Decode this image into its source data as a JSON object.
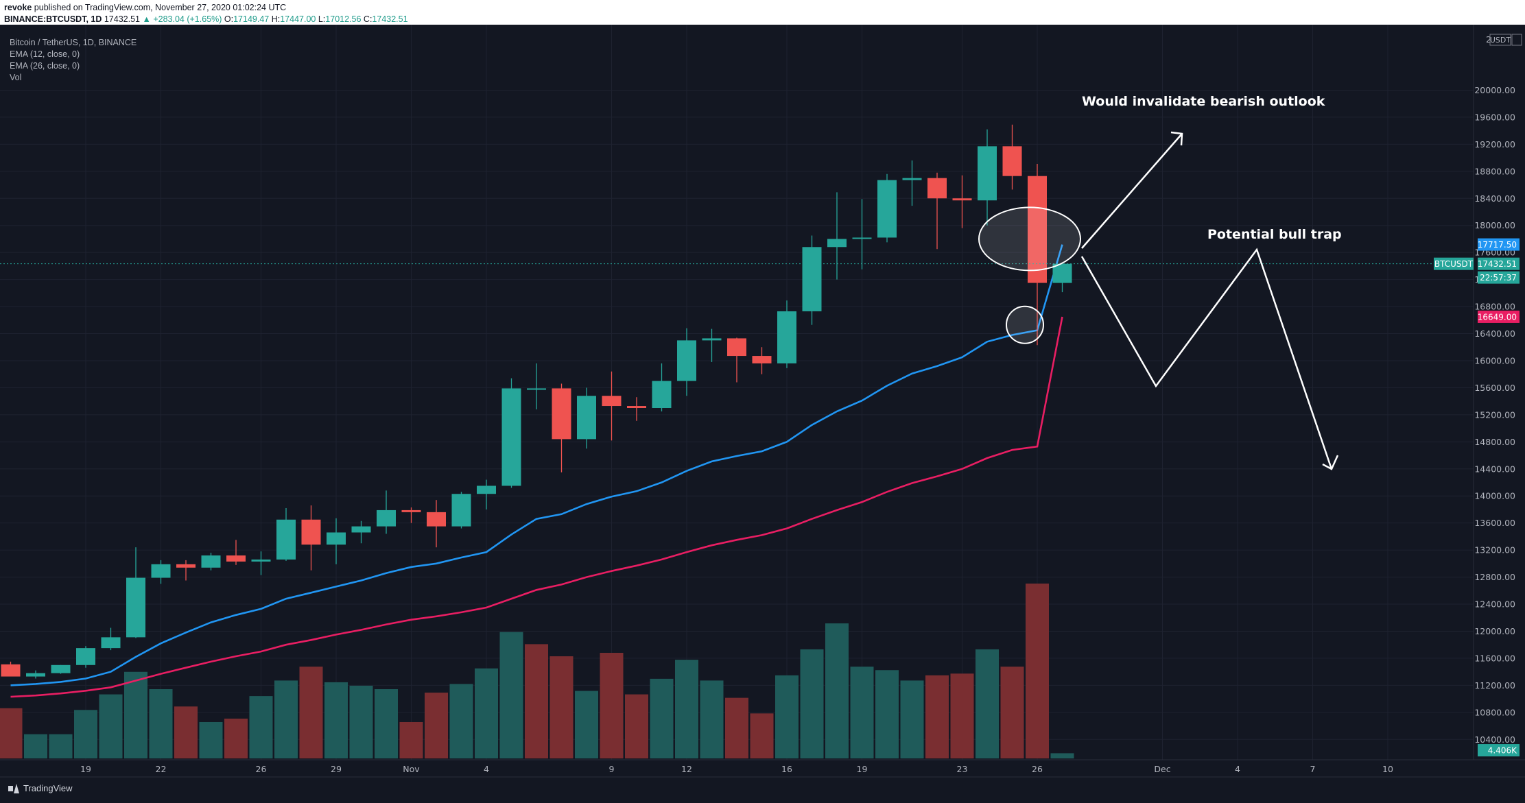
{
  "header": {
    "user": "revoke",
    "published": " published on TradingView.com, November 27, 2020 01:02:24 UTC",
    "symbol": "BINANCE:BTCUSDT, 1D",
    "last": "17432.51",
    "change": "+283.04 (+1.65%)",
    "o_label": "O:",
    "o": "17149.47",
    "h_label": "H:",
    "h": "17447.00",
    "l_label": "L:",
    "l": "17012.56",
    "c_label": "C:",
    "c": "17432.51"
  },
  "legend": {
    "title": "Bitcoin / TetherUS, 1D, BINANCE",
    "ema12": "EMA (12, close, 0)",
    "ema26": "EMA (26, close, 0)",
    "vol": "Vol"
  },
  "footer": {
    "brand": "TradingView"
  },
  "colors": {
    "up": "#26a69a",
    "down": "#ef5350",
    "vol_up": "#1f5b5a",
    "vol_down": "#7a2e31",
    "ema12": "#2196f3",
    "ema26": "#e91e63",
    "grid": "#1e2230",
    "axis_text": "#b2b5be"
  },
  "chart_data": {
    "type": "candlestick",
    "title": "Bitcoin / TetherUS, 1D, BINANCE",
    "ylim": [
      10200,
      20400
    ],
    "currency_label": "USDT",
    "y_ticks": [
      "10400.00",
      "10800.00",
      "11200.00",
      "11600.00",
      "12000.00",
      "12400.00",
      "12800.00",
      "13200.00",
      "13600.00",
      "14000.00",
      "14400.00",
      "14800.00",
      "15200.00",
      "15600.00",
      "16000.00",
      "16400.00",
      "16800.00",
      "17200.00",
      "17600.00",
      "18000.00",
      "18400.00",
      "18800.00",
      "19200.00",
      "19600.00",
      "20000.00"
    ],
    "top_tick": "2",
    "x_ticks": [
      {
        "i": 3,
        "label": "19"
      },
      {
        "i": 6,
        "label": "22"
      },
      {
        "i": 10,
        "label": "26"
      },
      {
        "i": 13,
        "label": "29"
      },
      {
        "i": 16,
        "label": "Nov"
      },
      {
        "i": 19,
        "label": "4"
      },
      {
        "i": 24,
        "label": "9"
      },
      {
        "i": 27,
        "label": "12"
      },
      {
        "i": 31,
        "label": "16"
      },
      {
        "i": 34,
        "label": "19"
      },
      {
        "i": 38,
        "label": "23"
      },
      {
        "i": 41,
        "label": "26"
      },
      {
        "i": 46,
        "label": "Dec"
      },
      {
        "i": 49,
        "label": "4"
      },
      {
        "i": 52,
        "label": "7"
      },
      {
        "i": 55,
        "label": "10"
      }
    ],
    "candles": [
      {
        "o": 11510,
        "h": 11550,
        "l": 11340,
        "c": 11330
      },
      {
        "o": 11330,
        "h": 11420,
        "l": 11300,
        "c": 11380
      },
      {
        "o": 11380,
        "h": 11500,
        "l": 11370,
        "c": 11500
      },
      {
        "o": 11500,
        "h": 11780,
        "l": 11460,
        "c": 11750
      },
      {
        "o": 11750,
        "h": 12050,
        "l": 11720,
        "c": 11910
      },
      {
        "o": 11910,
        "h": 13240,
        "l": 11900,
        "c": 12790
      },
      {
        "o": 12790,
        "h": 13050,
        "l": 12700,
        "c": 12990
      },
      {
        "o": 12990,
        "h": 13050,
        "l": 12750,
        "c": 12940
      },
      {
        "o": 12940,
        "h": 13160,
        "l": 12900,
        "c": 13120
      },
      {
        "o": 13120,
        "h": 13350,
        "l": 12980,
        "c": 13030
      },
      {
        "o": 13030,
        "h": 13180,
        "l": 12830,
        "c": 13060
      },
      {
        "o": 13060,
        "h": 13820,
        "l": 13040,
        "c": 13650
      },
      {
        "o": 13650,
        "h": 13860,
        "l": 12900,
        "c": 13280
      },
      {
        "o": 13280,
        "h": 13670,
        "l": 12990,
        "c": 13460
      },
      {
        "o": 13460,
        "h": 13630,
        "l": 13300,
        "c": 13550
      },
      {
        "o": 13550,
        "h": 14080,
        "l": 13440,
        "c": 13790
      },
      {
        "o": 13790,
        "h": 13830,
        "l": 13600,
        "c": 13760
      },
      {
        "o": 13760,
        "h": 13940,
        "l": 13240,
        "c": 13550
      },
      {
        "o": 13550,
        "h": 14060,
        "l": 13520,
        "c": 14030
      },
      {
        "o": 14030,
        "h": 14240,
        "l": 13800,
        "c": 14150
      },
      {
        "o": 14150,
        "h": 15740,
        "l": 14120,
        "c": 15590
      },
      {
        "o": 15590,
        "h": 15960,
        "l": 15280,
        "c": 15590
      },
      {
        "o": 15590,
        "h": 15660,
        "l": 14350,
        "c": 14840
      },
      {
        "o": 14840,
        "h": 15600,
        "l": 14700,
        "c": 15480
      },
      {
        "o": 15480,
        "h": 15840,
        "l": 14820,
        "c": 15330
      },
      {
        "o": 15330,
        "h": 15460,
        "l": 15110,
        "c": 15300
      },
      {
        "o": 15300,
        "h": 15960,
        "l": 15250,
        "c": 15700
      },
      {
        "o": 15700,
        "h": 16480,
        "l": 15480,
        "c": 16300
      },
      {
        "o": 16300,
        "h": 16470,
        "l": 15980,
        "c": 16330
      },
      {
        "o": 16330,
        "h": 16340,
        "l": 15680,
        "c": 16070
      },
      {
        "o": 16070,
        "h": 16200,
        "l": 15800,
        "c": 15960
      },
      {
        "o": 15960,
        "h": 16890,
        "l": 15890,
        "c": 16730
      },
      {
        "o": 16730,
        "h": 17850,
        "l": 16530,
        "c": 17680
      },
      {
        "o": 17680,
        "h": 18490,
        "l": 17200,
        "c": 17800
      },
      {
        "o": 17800,
        "h": 18390,
        "l": 17350,
        "c": 17820
      },
      {
        "o": 17820,
        "h": 18760,
        "l": 17750,
        "c": 18670
      },
      {
        "o": 18670,
        "h": 18960,
        "l": 18290,
        "c": 18700
      },
      {
        "o": 18700,
        "h": 18780,
        "l": 17650,
        "c": 18400
      },
      {
        "o": 18400,
        "h": 18740,
        "l": 17960,
        "c": 18370
      },
      {
        "o": 18370,
        "h": 19420,
        "l": 18000,
        "c": 19170
      },
      {
        "o": 19170,
        "h": 19490,
        "l": 18530,
        "c": 18730
      },
      {
        "o": 18730,
        "h": 18910,
        "l": 16230,
        "c": 17150
      },
      {
        "o": 17149.47,
        "h": 17447,
        "l": 17012.56,
        "c": 17432.51
      }
    ],
    "volume": [
      {
        "v": 290,
        "up": false
      },
      {
        "v": 140,
        "up": true
      },
      {
        "v": 140,
        "up": true
      },
      {
        "v": 280,
        "up": true
      },
      {
        "v": 370,
        "up": true
      },
      {
        "v": 500,
        "up": true
      },
      {
        "v": 400,
        "up": true
      },
      {
        "v": 300,
        "up": false
      },
      {
        "v": 210,
        "up": true
      },
      {
        "v": 230,
        "up": false
      },
      {
        "v": 360,
        "up": true
      },
      {
        "v": 450,
        "up": true
      },
      {
        "v": 530,
        "up": false
      },
      {
        "v": 440,
        "up": true
      },
      {
        "v": 420,
        "up": true
      },
      {
        "v": 400,
        "up": true
      },
      {
        "v": 210,
        "up": false
      },
      {
        "v": 380,
        "up": false
      },
      {
        "v": 430,
        "up": true
      },
      {
        "v": 520,
        "up": true
      },
      {
        "v": 730,
        "up": true
      },
      {
        "v": 660,
        "up": false
      },
      {
        "v": 590,
        "up": false
      },
      {
        "v": 390,
        "up": true
      },
      {
        "v": 610,
        "up": false
      },
      {
        "v": 370,
        "up": false
      },
      {
        "v": 460,
        "up": true
      },
      {
        "v": 570,
        "up": true
      },
      {
        "v": 450,
        "up": true
      },
      {
        "v": 350,
        "up": false
      },
      {
        "v": 260,
        "up": false
      },
      {
        "v": 480,
        "up": true
      },
      {
        "v": 630,
        "up": true
      },
      {
        "v": 780,
        "up": true
      },
      {
        "v": 530,
        "up": true
      },
      {
        "v": 510,
        "up": true
      },
      {
        "v": 450,
        "up": true
      },
      {
        "v": 480,
        "up": false
      },
      {
        "v": 490,
        "up": false
      },
      {
        "v": 630,
        "up": true
      },
      {
        "v": 530,
        "up": false
      },
      {
        "v": 1010,
        "up": false
      },
      {
        "v": 30,
        "up": true
      }
    ],
    "ema12": [
      11200,
      11220,
      11250,
      11300,
      11400,
      11620,
      11820,
      11980,
      12130,
      12240,
      12330,
      12480,
      12570,
      12660,
      12750,
      12860,
      12950,
      13000,
      13090,
      13170,
      13430,
      13660,
      13730,
      13880,
      13990,
      14070,
      14200,
      14370,
      14510,
      14590,
      14660,
      14800,
      15050,
      15250,
      15410,
      15630,
      15810,
      15920,
      16050,
      16280,
      16380,
      16450,
      17717.5
    ],
    "ema26": [
      11030,
      11050,
      11080,
      11120,
      11170,
      11270,
      11370,
      11460,
      11550,
      11630,
      11700,
      11800,
      11870,
      11950,
      12020,
      12100,
      12170,
      12220,
      12280,
      12350,
      12480,
      12610,
      12690,
      12800,
      12890,
      12970,
      13060,
      13170,
      13270,
      13350,
      13420,
      13520,
      13660,
      13790,
      13910,
      14060,
      14190,
      14290,
      14400,
      14560,
      14680,
      14730,
      16649.0
    ],
    "price_labels": [
      {
        "label": "17717.50",
        "value": 17717.5,
        "color": "#2196f3"
      },
      {
        "label": "BTCUSDT",
        "value": 17432.51,
        "color": "#26a69a",
        "left": true
      },
      {
        "label": "17432.51",
        "value": 17432.51,
        "color": "#26a69a"
      },
      {
        "label": "22:57:37",
        "value": 17230,
        "color": "#26a69a"
      },
      {
        "label": "16649.00",
        "value": 16649.0,
        "color": "#e91e63"
      },
      {
        "label": "4.406K",
        "value": 10240,
        "color": "#26a69a"
      }
    ],
    "annotations": [
      {
        "text": "Would invalidate bearish outlook"
      },
      {
        "text": "Potential bull trap"
      }
    ]
  }
}
